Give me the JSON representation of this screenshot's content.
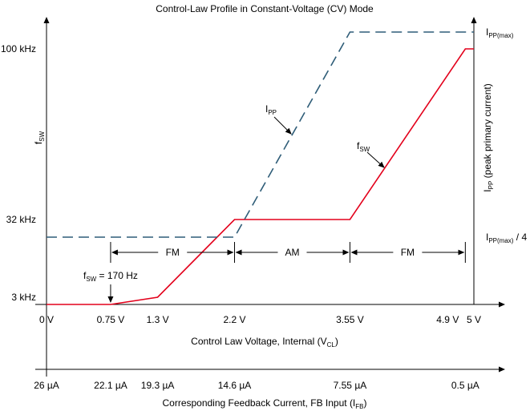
{
  "chart_data": {
    "type": "line",
    "title": "Control-Law Profile in Constant-Voltage (CV) Mode",
    "xlabel": "Control Law Voltage, Internal (V",
    "xlabel_sub": "CL",
    "xlabel_end": ")",
    "x2label": "Corresponding Feedback Current, FB Input (I",
    "x2label_sub": "FB",
    "x2label_end": ")",
    "ylabel_left": "f",
    "ylabel_left_sub": "SW",
    "ylabel_right": "I",
    "ylabel_right_sub": "PP",
    "ylabel_right_end": " (peak primary current)",
    "xlim": [
      0,
      5
    ],
    "x_ticks": [
      {
        "value": 0,
        "label": "0 V",
        "fb": "26 µA"
      },
      {
        "value": 0.75,
        "label": "0.75 V",
        "fb": "22.1 µA"
      },
      {
        "value": 1.3,
        "label": "1.3 V",
        "fb": "19.3 µA"
      },
      {
        "value": 2.2,
        "label": "2.2 V",
        "fb": "14.6 µA"
      },
      {
        "value": 3.55,
        "label": "3.55 V",
        "fb": "7.55 µA"
      },
      {
        "value": 4.9,
        "label": "4.9 V",
        "fb": "0.5 µA"
      },
      {
        "value": 5,
        "label": "5 V",
        "fb": ""
      }
    ],
    "y_left_ticks": [
      {
        "value": 100,
        "label": "100 kHz"
      },
      {
        "value": 32,
        "label": "32 kHz"
      },
      {
        "value": 3,
        "label": "3 kHz"
      }
    ],
    "y_right_ticks": [
      {
        "value": 1,
        "label": "I",
        "sub": "PP(max)",
        "end": ""
      },
      {
        "value": 0.25,
        "label": "I",
        "sub": "PP(max)",
        "end": " / 4"
      }
    ],
    "series": [
      {
        "name": "f",
        "name_sub": "SW",
        "unit": "kHz",
        "color": "#e3001b",
        "style": "solid",
        "x": [
          0,
          0.75,
          1.3,
          2.2,
          3.55,
          4.9,
          5
        ],
        "y": [
          0.17,
          0.17,
          3,
          32,
          32,
          100,
          100
        ]
      },
      {
        "name": "I",
        "name_sub": "PP",
        "unit": "fraction of IPP(max)",
        "color": "#2f5d78",
        "style": "dashed",
        "x": [
          0,
          2.2,
          3.55,
          5
        ],
        "y": [
          0.25,
          0.25,
          1,
          1
        ]
      }
    ],
    "regions": [
      {
        "label": "FM",
        "from": 0.75,
        "to": 2.2
      },
      {
        "label": "AM",
        "from": 2.2,
        "to": 3.55
      },
      {
        "label": "FM",
        "from": 3.55,
        "to": 4.9
      }
    ],
    "annotations": [
      {
        "text": "f",
        "sub": "SW",
        "end": " = 170 Hz",
        "x": 0.75
      }
    ],
    "grid": false
  }
}
